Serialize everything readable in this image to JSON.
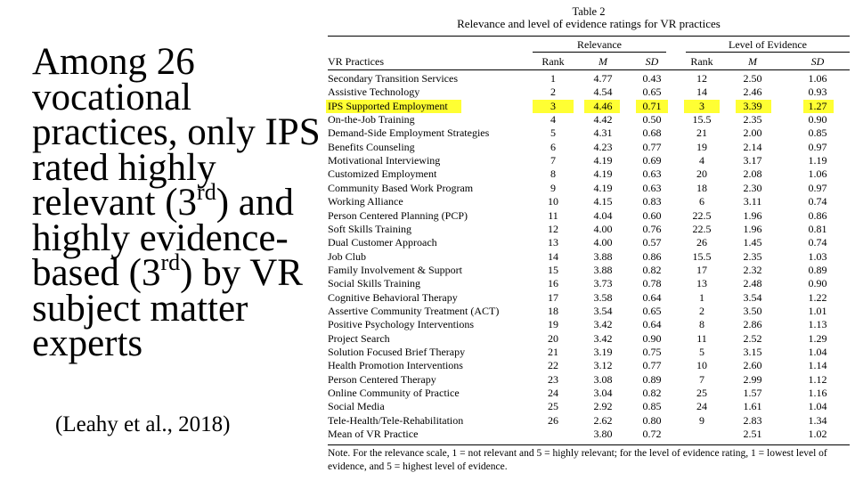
{
  "slide": {
    "bullet_part1": "Among 26 vocational practices, only IPS rated highly relevant (3",
    "sup1": "rd",
    "bullet_part2": ") and highly evidence-based (3",
    "sup2": "rd",
    "bullet_part3": ") by VR subject matter experts",
    "citation": "(Leahy et al., 2018)"
  },
  "table": {
    "number": "Table 2",
    "caption": "Relevance and level of evidence ratings for VR practices",
    "group_relevance": "Relevance",
    "group_evidence": "Level of Evidence",
    "headers": {
      "practice": "VR Practices",
      "rank1": "Rank",
      "m1": "M",
      "sd1": "SD",
      "rank2": "Rank",
      "m2": "M",
      "sd2": "SD"
    },
    "highlight_color": "#ffff33",
    "rows": [
      {
        "name": "Secondary Transition Services",
        "r1": "1",
        "m1": "4.77",
        "sd1": "0.43",
        "r2": "12",
        "m2": "2.50",
        "sd2": "1.06"
      },
      {
        "name": "Assistive Technology",
        "r1": "2",
        "m1": "4.54",
        "sd1": "0.65",
        "r2": "14",
        "m2": "2.46",
        "sd2": "0.93"
      },
      {
        "name": "IPS Supported Employment",
        "r1": "3",
        "m1": "4.46",
        "sd1": "0.71",
        "r2": "3",
        "m2": "3.39",
        "sd2": "1.27",
        "highlight": true
      },
      {
        "name": "On-the-Job Training",
        "r1": "4",
        "m1": "4.42",
        "sd1": "0.50",
        "r2": "15.5",
        "m2": "2.35",
        "sd2": "0.90"
      },
      {
        "name": "Demand-Side Employment Strategies",
        "r1": "5",
        "m1": "4.31",
        "sd1": "0.68",
        "r2": "21",
        "m2": "2.00",
        "sd2": "0.85"
      },
      {
        "name": "Benefits Counseling",
        "r1": "6",
        "m1": "4.23",
        "sd1": "0.77",
        "r2": "19",
        "m2": "2.14",
        "sd2": "0.97"
      },
      {
        "name": "Motivational Interviewing",
        "r1": "7",
        "m1": "4.19",
        "sd1": "0.69",
        "r2": "4",
        "m2": "3.17",
        "sd2": "1.19"
      },
      {
        "name": "Customized Employment",
        "r1": "8",
        "m1": "4.19",
        "sd1": "0.63",
        "r2": "20",
        "m2": "2.08",
        "sd2": "1.06"
      },
      {
        "name": "Community Based Work Program",
        "r1": "9",
        "m1": "4.19",
        "sd1": "0.63",
        "r2": "18",
        "m2": "2.30",
        "sd2": "0.97"
      },
      {
        "name": "Working Alliance",
        "r1": "10",
        "m1": "4.15",
        "sd1": "0.83",
        "r2": "6",
        "m2": "3.11",
        "sd2": "0.74"
      },
      {
        "name": "Person Centered Planning (PCP)",
        "r1": "11",
        "m1": "4.04",
        "sd1": "0.60",
        "r2": "22.5",
        "m2": "1.96",
        "sd2": "0.86"
      },
      {
        "name": "Soft Skills Training",
        "r1": "12",
        "m1": "4.00",
        "sd1": "0.76",
        "r2": "22.5",
        "m2": "1.96",
        "sd2": "0.81"
      },
      {
        "name": "Dual Customer Approach",
        "r1": "13",
        "m1": "4.00",
        "sd1": "0.57",
        "r2": "26",
        "m2": "1.45",
        "sd2": "0.74"
      },
      {
        "name": "Job Club",
        "r1": "14",
        "m1": "3.88",
        "sd1": "0.86",
        "r2": "15.5",
        "m2": "2.35",
        "sd2": "1.03"
      },
      {
        "name": "Family Involvement & Support",
        "r1": "15",
        "m1": "3.88",
        "sd1": "0.82",
        "r2": "17",
        "m2": "2.32",
        "sd2": "0.89"
      },
      {
        "name": "Social Skills Training",
        "r1": "16",
        "m1": "3.73",
        "sd1": "0.78",
        "r2": "13",
        "m2": "2.48",
        "sd2": "0.90"
      },
      {
        "name": "Cognitive Behavioral Therapy",
        "r1": "17",
        "m1": "3.58",
        "sd1": "0.64",
        "r2": "1",
        "m2": "3.54",
        "sd2": "1.22"
      },
      {
        "name": "Assertive Community Treatment (ACT)",
        "r1": "18",
        "m1": "3.54",
        "sd1": "0.65",
        "r2": "2",
        "m2": "3.50",
        "sd2": "1.01"
      },
      {
        "name": "Positive Psychology Interventions",
        "r1": "19",
        "m1": "3.42",
        "sd1": "0.64",
        "r2": "8",
        "m2": "2.86",
        "sd2": "1.13"
      },
      {
        "name": "Project Search",
        "r1": "20",
        "m1": "3.42",
        "sd1": "0.90",
        "r2": "11",
        "m2": "2.52",
        "sd2": "1.29"
      },
      {
        "name": "Solution Focused Brief Therapy",
        "r1": "21",
        "m1": "3.19",
        "sd1": "0.75",
        "r2": "5",
        "m2": "3.15",
        "sd2": "1.04"
      },
      {
        "name": "Health Promotion Interventions",
        "r1": "22",
        "m1": "3.12",
        "sd1": "0.77",
        "r2": "10",
        "m2": "2.60",
        "sd2": "1.14"
      },
      {
        "name": "Person Centered Therapy",
        "r1": "23",
        "m1": "3.08",
        "sd1": "0.89",
        "r2": "7",
        "m2": "2.99",
        "sd2": "1.12"
      },
      {
        "name": "Online Community of Practice",
        "r1": "24",
        "m1": "3.04",
        "sd1": "0.82",
        "r2": "25",
        "m2": "1.57",
        "sd2": "1.16"
      },
      {
        "name": "Social Media",
        "r1": "25",
        "m1": "2.92",
        "sd1": "0.85",
        "r2": "24",
        "m2": "1.61",
        "sd2": "1.04"
      },
      {
        "name": "Tele-Health/Tele-Rehabilitation",
        "r1": "26",
        "m1": "2.62",
        "sd1": "0.80",
        "r2": "9",
        "m2": "2.83",
        "sd2": "1.34"
      },
      {
        "name": "Mean of VR Practice",
        "r1": "",
        "m1": "3.80",
        "sd1": "0.72",
        "r2": "",
        "m2": "2.51",
        "sd2": "1.02"
      }
    ],
    "note": "Note. For the relevance scale, 1 = not relevant and 5 = highly relevant; for the level of evidence rating, 1 = lowest level of evidence, and 5 = highest level of evidence."
  }
}
